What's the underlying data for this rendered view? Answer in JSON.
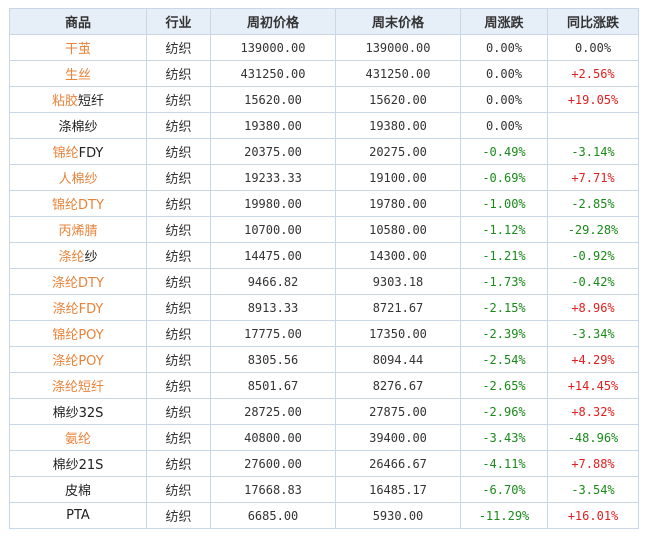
{
  "colors": {
    "header_bg": "#e6eef8",
    "border": "#c9d6e6",
    "link": "#e8833a",
    "up": "#e02020",
    "down": "#1a8a1a",
    "flat": "#333333"
  },
  "headers": [
    "商品",
    "行业",
    "周初价格",
    "周末价格",
    "周涨跌",
    "同比涨跌"
  ],
  "rows": [
    {
      "name_link": "干茧",
      "name_plain": "",
      "industry": "纺织",
      "open": "139000.00",
      "close": "139000.00",
      "weekly": "0.00%",
      "weekly_dir": "flat",
      "yoy": "0.00%",
      "yoy_dir": "flat"
    },
    {
      "name_link": "生丝",
      "name_plain": "",
      "industry": "纺织",
      "open": "431250.00",
      "close": "431250.00",
      "weekly": "0.00%",
      "weekly_dir": "flat",
      "yoy": "+2.56%",
      "yoy_dir": "up"
    },
    {
      "name_link": "粘胶",
      "name_plain": "短纤",
      "industry": "纺织",
      "open": "15620.00",
      "close": "15620.00",
      "weekly": "0.00%",
      "weekly_dir": "flat",
      "yoy": "+19.05%",
      "yoy_dir": "up"
    },
    {
      "name_link": "",
      "name_plain": "涤棉纱",
      "industry": "纺织",
      "open": "19380.00",
      "close": "19380.00",
      "weekly": "0.00%",
      "weekly_dir": "flat",
      "yoy": "",
      "yoy_dir": "flat"
    },
    {
      "name_link": "锦纶",
      "name_plain": "FDY",
      "industry": "纺织",
      "open": "20375.00",
      "close": "20275.00",
      "weekly": "-0.49%",
      "weekly_dir": "down",
      "yoy": "-3.14%",
      "yoy_dir": "down"
    },
    {
      "name_link": "人棉纱",
      "name_plain": "",
      "industry": "纺织",
      "open": "19233.33",
      "close": "19100.00",
      "weekly": "-0.69%",
      "weekly_dir": "down",
      "yoy": "+7.71%",
      "yoy_dir": "up"
    },
    {
      "name_link": "锦纶DTY",
      "name_plain": "",
      "industry": "纺织",
      "open": "19980.00",
      "close": "19780.00",
      "weekly": "-1.00%",
      "weekly_dir": "down",
      "yoy": "-2.85%",
      "yoy_dir": "down"
    },
    {
      "name_link": "丙烯腈",
      "name_plain": "",
      "industry": "纺织",
      "open": "10700.00",
      "close": "10580.00",
      "weekly": "-1.12%",
      "weekly_dir": "down",
      "yoy": "-29.28%",
      "yoy_dir": "down"
    },
    {
      "name_link": "涤纶",
      "name_plain": "纱",
      "industry": "纺织",
      "open": "14475.00",
      "close": "14300.00",
      "weekly": "-1.21%",
      "weekly_dir": "down",
      "yoy": "-0.92%",
      "yoy_dir": "down"
    },
    {
      "name_link": "涤纶DTY",
      "name_plain": "",
      "industry": "纺织",
      "open": "9466.82",
      "close": "9303.18",
      "weekly": "-1.73%",
      "weekly_dir": "down",
      "yoy": "-0.42%",
      "yoy_dir": "down"
    },
    {
      "name_link": "涤纶FDY",
      "name_plain": "",
      "industry": "纺织",
      "open": "8913.33",
      "close": "8721.67",
      "weekly": "-2.15%",
      "weekly_dir": "down",
      "yoy": "+8.96%",
      "yoy_dir": "up"
    },
    {
      "name_link": "锦纶POY",
      "name_plain": "",
      "industry": "纺织",
      "open": "17775.00",
      "close": "17350.00",
      "weekly": "-2.39%",
      "weekly_dir": "down",
      "yoy": "-3.34%",
      "yoy_dir": "down"
    },
    {
      "name_link": "涤纶POY",
      "name_plain": "",
      "industry": "纺织",
      "open": "8305.56",
      "close": "8094.44",
      "weekly": "-2.54%",
      "weekly_dir": "down",
      "yoy": "+4.29%",
      "yoy_dir": "up"
    },
    {
      "name_link": "涤纶短纤",
      "name_plain": "",
      "industry": "纺织",
      "open": "8501.67",
      "close": "8276.67",
      "weekly": "-2.65%",
      "weekly_dir": "down",
      "yoy": "+14.45%",
      "yoy_dir": "up"
    },
    {
      "name_link": "",
      "name_plain": "棉纱32S",
      "industry": "纺织",
      "open": "28725.00",
      "close": "27875.00",
      "weekly": "-2.96%",
      "weekly_dir": "down",
      "yoy": "+8.32%",
      "yoy_dir": "up"
    },
    {
      "name_link": "氨纶",
      "name_plain": "",
      "industry": "纺织",
      "open": "40800.00",
      "close": "39400.00",
      "weekly": "-3.43%",
      "weekly_dir": "down",
      "yoy": "-48.96%",
      "yoy_dir": "down"
    },
    {
      "name_link": "",
      "name_plain": "棉纱21S",
      "industry": "纺织",
      "open": "27600.00",
      "close": "26466.67",
      "weekly": "-4.11%",
      "weekly_dir": "down",
      "yoy": "+7.88%",
      "yoy_dir": "up"
    },
    {
      "name_link": "",
      "name_plain": "皮棉",
      "industry": "纺织",
      "open": "17668.83",
      "close": "16485.17",
      "weekly": "-6.70%",
      "weekly_dir": "down",
      "yoy": "-3.54%",
      "yoy_dir": "down"
    },
    {
      "name_link": "",
      "name_plain": "PTA",
      "industry": "纺织",
      "open": "6685.00",
      "close": "5930.00",
      "weekly": "-11.29%",
      "weekly_dir": "down",
      "yoy": "+16.01%",
      "yoy_dir": "up"
    }
  ]
}
